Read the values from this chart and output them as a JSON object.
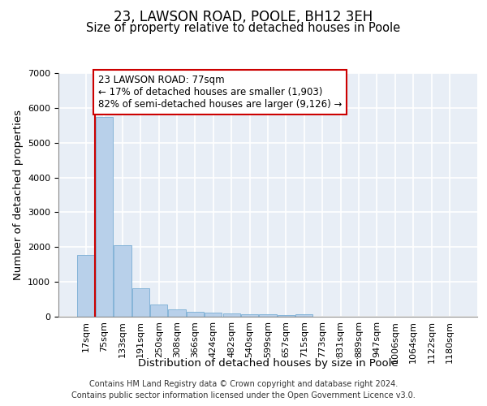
{
  "title_line1": "23, LAWSON ROAD, POOLE, BH12 3EH",
  "title_line2": "Size of property relative to detached houses in Poole",
  "xlabel": "Distribution of detached houses by size in Poole",
  "ylabel": "Number of detached properties",
  "footnote1": "Contains HM Land Registry data © Crown copyright and database right 2024.",
  "footnote2": "Contains public sector information licensed under the Open Government Licence v3.0.",
  "annotation_line1": "23 LAWSON ROAD: 77sqm",
  "annotation_line2": "← 17% of detached houses are smaller (1,903)",
  "annotation_line3": "82% of semi-detached houses are larger (9,126) →",
  "bar_labels": [
    "17sqm",
    "75sqm",
    "133sqm",
    "191sqm",
    "250sqm",
    "308sqm",
    "366sqm",
    "424sqm",
    "482sqm",
    "540sqm",
    "599sqm",
    "657sqm",
    "715sqm",
    "773sqm",
    "831sqm",
    "889sqm",
    "947sqm",
    "1006sqm",
    "1064sqm",
    "1122sqm",
    "1180sqm"
  ],
  "bar_values": [
    1780,
    5750,
    2060,
    820,
    360,
    210,
    130,
    115,
    100,
    70,
    60,
    50,
    70,
    0,
    0,
    0,
    0,
    0,
    0,
    0,
    0
  ],
  "bar_color": "#b8d0ea",
  "bar_edgecolor": "#7aaed4",
  "property_line_color": "#cc0000",
  "property_line_bar_index": 1,
  "ylim": [
    0,
    7000
  ],
  "yticks": [
    0,
    1000,
    2000,
    3000,
    4000,
    5000,
    6000,
    7000
  ],
  "background_color": "#e8eef6",
  "grid_color": "#ffffff",
  "annotation_box_facecolor": "#ffffff",
  "annotation_box_edgecolor": "#cc0000",
  "title_fontsize": 12,
  "subtitle_fontsize": 10.5,
  "axis_label_fontsize": 9.5,
  "tick_fontsize": 8,
  "annotation_fontsize": 8.5,
  "footnote_fontsize": 7
}
